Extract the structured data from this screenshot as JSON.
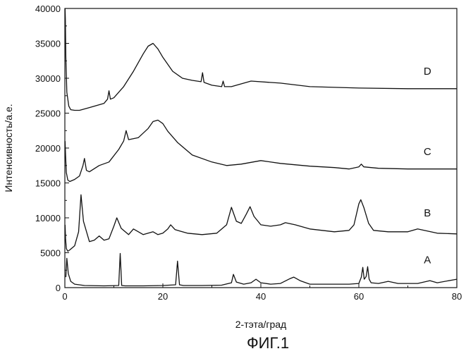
{
  "chart_data": {
    "type": "line",
    "title": "",
    "caption": "ФИГ.1",
    "xlabel": "2-тэта/град",
    "ylabel": "Интенсивность/а.е.",
    "xlim": [
      0,
      80
    ],
    "ylim": [
      0,
      40000
    ],
    "x_ticks": [
      0,
      20,
      40,
      60,
      80
    ],
    "y_ticks": [
      0,
      5000,
      10000,
      15000,
      20000,
      25000,
      30000,
      35000,
      40000
    ],
    "x_tick_labels": [
      "0",
      "20",
      "40",
      "60",
      "80"
    ],
    "y_tick_labels": [
      "0",
      "5000",
      "10000",
      "15000",
      "20000",
      "25000",
      "30000",
      "35000",
      "40000"
    ],
    "grid": false,
    "series": [
      {
        "name": "A",
        "label_at": [
          74,
          3500
        ],
        "x": [
          0.2,
          0.4,
          0.7,
          1.2,
          2,
          4,
          8,
          11,
          11.3,
          11.6,
          12.3,
          16,
          20,
          22.6,
          23,
          23.4,
          24.2,
          28,
          32,
          34,
          34.4,
          35,
          36.5,
          38,
          39,
          40,
          42,
          44,
          46,
          46.7,
          48,
          50,
          54,
          58,
          60,
          60.5,
          60.8,
          61.1,
          61.5,
          61.8,
          62.1,
          62.5,
          64,
          66,
          68,
          72,
          74.5,
          76,
          80
        ],
        "y": [
          1500,
          4200,
          2000,
          900,
          500,
          300,
          250,
          300,
          4900,
          300,
          250,
          250,
          300,
          400,
          3800,
          400,
          300,
          300,
          350,
          700,
          1900,
          800,
          500,
          700,
          1200,
          700,
          500,
          600,
          1300,
          1500,
          1000,
          500,
          500,
          500,
          600,
          1500,
          2900,
          1200,
          1600,
          3000,
          1200,
          700,
          600,
          900,
          600,
          600,
          1000,
          700,
          1200
        ]
      },
      {
        "name": "B",
        "label_at": [
          74,
          10200
        ],
        "x": [
          0.05,
          0.15,
          0.3,
          0.6,
          1,
          2,
          2.8,
          3.3,
          3.8,
          5,
          6,
          7,
          8,
          9,
          10,
          10.6,
          11.5,
          13,
          14,
          15,
          16,
          18,
          19,
          20,
          21,
          21.6,
          22.5,
          23,
          25,
          28,
          31,
          33,
          34,
          35,
          36,
          37,
          37.8,
          38.6,
          40,
          42,
          44,
          45,
          47,
          50,
          55,
          58,
          59,
          60,
          60.4,
          61,
          62,
          63,
          66,
          70,
          72,
          76,
          80
        ],
        "y": [
          9000,
          7000,
          5600,
          5200,
          5400,
          6000,
          8000,
          13300,
          9500,
          6600,
          6800,
          7400,
          6800,
          7000,
          8800,
          10000,
          8500,
          7600,
          8400,
          8000,
          7600,
          8000,
          7600,
          7800,
          8400,
          9000,
          8300,
          8200,
          7800,
          7600,
          7800,
          9000,
          11500,
          9500,
          9200,
          10500,
          11600,
          10200,
          9000,
          8800,
          9000,
          9300,
          9000,
          8400,
          8000,
          8200,
          9000,
          12000,
          12600,
          11500,
          9200,
          8200,
          8000,
          8000,
          8400,
          7800,
          7700
        ]
      },
      {
        "name": "C",
        "label_at": [
          74,
          19000
        ],
        "x": [
          0.05,
          0.15,
          0.3,
          0.6,
          1,
          2,
          3,
          3.7,
          4,
          4.4,
          5,
          7,
          9,
          11,
          12,
          12.5,
          13,
          15,
          17,
          18,
          19,
          20,
          21,
          23,
          26,
          30,
          33,
          36,
          40,
          44,
          50,
          55,
          58,
          60,
          60.5,
          61,
          64,
          70,
          80
        ],
        "y": [
          21000,
          19000,
          16500,
          15400,
          15200,
          15500,
          16000,
          17500,
          18500,
          16800,
          16600,
          17500,
          18000,
          19800,
          21000,
          22500,
          21200,
          21500,
          22800,
          23800,
          24000,
          23500,
          22400,
          20800,
          19000,
          18000,
          17500,
          17700,
          18200,
          17800,
          17400,
          17200,
          17000,
          17300,
          17700,
          17300,
          17100,
          17000,
          17000
        ]
      },
      {
        "name": "D",
        "label_at": [
          74,
          30500
        ],
        "x": [
          0.05,
          0.1,
          0.2,
          0.4,
          0.8,
          1.2,
          2,
          3,
          5,
          8,
          8.7,
          9,
          9.3,
          10,
          12,
          14,
          16,
          17,
          18,
          19,
          20,
          22,
          24,
          26,
          27.8,
          28.1,
          28.4,
          30,
          32,
          32.3,
          32.6,
          34,
          38,
          44,
          50,
          60,
          70,
          80
        ],
        "y": [
          40000,
          38500,
          33000,
          28000,
          26000,
          25500,
          25400,
          25400,
          25800,
          26400,
          27000,
          28200,
          27000,
          27200,
          28800,
          31000,
          33500,
          34600,
          35000,
          34200,
          33000,
          31000,
          30000,
          29700,
          29500,
          30800,
          29400,
          29000,
          28800,
          29600,
          28800,
          28800,
          29600,
          29300,
          28800,
          28600,
          28500,
          28500
        ]
      }
    ]
  }
}
